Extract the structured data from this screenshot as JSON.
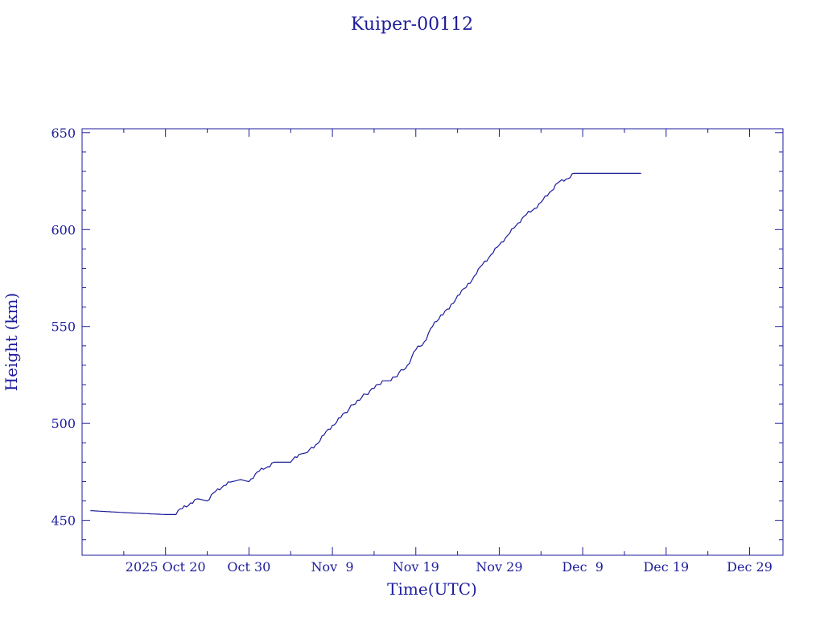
{
  "chart_data": {
    "type": "line",
    "title": "Kuiper-00112",
    "xlabel": "Time(UTC)",
    "ylabel": "Height (km)",
    "xlim": [
      "2025-10-10",
      "2026-01-02"
    ],
    "ylim": [
      432,
      652
    ],
    "grid": false,
    "x_tick_labels": [
      {
        "date": "2025-10-20",
        "label": "2025 Oct 20"
      },
      {
        "date": "2025-10-30",
        "label": "Oct 30"
      },
      {
        "date": "2025-11-09",
        "label": "Nov  9"
      },
      {
        "date": "2025-11-19",
        "label": "Nov 19"
      },
      {
        "date": "2025-11-29",
        "label": "Nov 29"
      },
      {
        "date": "2025-12-09",
        "label": "Dec  9"
      },
      {
        "date": "2025-12-19",
        "label": "Dec 19"
      },
      {
        "date": "2025-12-29",
        "label": "Dec 29"
      }
    ],
    "y_ticks": [
      450,
      500,
      550,
      600,
      650
    ],
    "series": [
      {
        "color": "#1c1c9c",
        "x": [
          "2025-10-11",
          "2025-10-15",
          "2025-10-20",
          "2025-10-21",
          "2025-10-22",
          "2025-10-23",
          "2025-10-24",
          "2025-10-25",
          "2025-10-26",
          "2025-10-27",
          "2025-10-28",
          "2025-10-29",
          "2025-10-30",
          "2025-10-31",
          "2025-11-01",
          "2025-11-02",
          "2025-11-03",
          "2025-11-04",
          "2025-11-05",
          "2025-11-06",
          "2025-11-07",
          "2025-11-08",
          "2025-11-09",
          "2025-11-10",
          "2025-11-12",
          "2025-11-14",
          "2025-11-15",
          "2025-11-16",
          "2025-11-18",
          "2025-11-19",
          "2025-11-20",
          "2025-11-21",
          "2025-11-22",
          "2025-11-23",
          "2025-11-24",
          "2025-11-25",
          "2025-11-26",
          "2025-11-27",
          "2025-11-28",
          "2025-11-29",
          "2025-11-30",
          "2025-12-01",
          "2025-12-02",
          "2025-12-03",
          "2025-12-04",
          "2025-12-05",
          "2025-12-06",
          "2025-12-07",
          "2025-12-08",
          "2025-12-09",
          "2025-12-11",
          "2025-12-16"
        ],
        "values": [
          455,
          454,
          453,
          453,
          456,
          459,
          461,
          460,
          465,
          468,
          470,
          471,
          470,
          475,
          477,
          480,
          480,
          480,
          484,
          485,
          489,
          494,
          499,
          503,
          512,
          518,
          522,
          522,
          530,
          538,
          542,
          550,
          556,
          559,
          566,
          570,
          576,
          582,
          587,
          592,
          597,
          602,
          607,
          610,
          614,
          619,
          624,
          626,
          629,
          629,
          629,
          629
        ]
      }
    ]
  }
}
